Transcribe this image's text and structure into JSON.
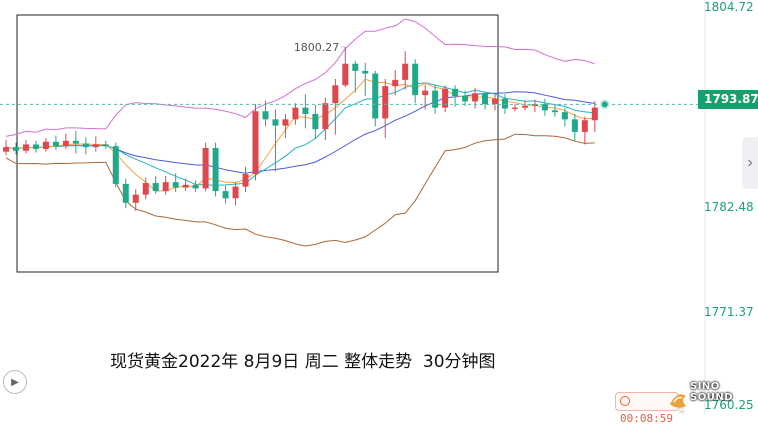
{
  "caption": "现货黄金2022年 8月9日 周二 整体走势  30分钟图",
  "axis": {
    "labels": [
      "1804.72",
      "1793.87",
      "1782.48",
      "1771.37",
      "1760.25"
    ],
    "current_price": "1793.87"
  },
  "high_annotation": "1800.27",
  "timer": "00:08:59",
  "logo": "SINO SOUND",
  "colors": {
    "up": "#e0474c",
    "down": "#1fa98a",
    "upper_band": "#d56fd8",
    "lower_band": "#a9683a",
    "ma_short": "#f4a340",
    "ma_mid": "#24b0c4",
    "ma_long": "#4b5bd6",
    "price_line": "#5cb6ad"
  },
  "chart_data": {
    "type": "candlestick",
    "title": "现货黄金2022年 8月9日 周二 整体走势  30分钟图",
    "ylim": [
      1760.25,
      1804.72
    ],
    "y_ticks": [
      1804.72,
      1793.87,
      1782.48,
      1771.37,
      1760.25
    ],
    "current_price": 1793.87,
    "annotations": [
      {
        "text": "1800.27",
        "value": 1800.27
      }
    ],
    "candles": [
      [
        1788.6,
        1789.1,
        1789.9,
        1788.2
      ],
      [
        1789.1,
        1788.7,
        1789.6,
        1788.3
      ],
      [
        1788.7,
        1789.4,
        1789.9,
        1788.4
      ],
      [
        1789.4,
        1788.9,
        1789.8,
        1788.5
      ],
      [
        1788.9,
        1789.7,
        1790.1,
        1788.6
      ],
      [
        1789.7,
        1789.2,
        1790.4,
        1788.8
      ],
      [
        1789.2,
        1789.8,
        1790.6,
        1788.9
      ],
      [
        1789.8,
        1789.5,
        1790.9,
        1788.4
      ],
      [
        1789.5,
        1789.1,
        1790.2,
        1788.3
      ],
      [
        1789.1,
        1789.4,
        1790.3,
        1788.6
      ],
      [
        1789.4,
        1789.2,
        1789.8,
        1788.9
      ],
      [
        1789.2,
        1785.0,
        1789.6,
        1784.6
      ],
      [
        1785.0,
        1782.9,
        1785.6,
        1782.3
      ],
      [
        1782.9,
        1783.8,
        1784.4,
        1782.0
      ],
      [
        1783.8,
        1785.1,
        1785.7,
        1783.3
      ],
      [
        1785.1,
        1784.2,
        1785.9,
        1783.9
      ],
      [
        1784.2,
        1785.2,
        1785.9,
        1783.8
      ],
      [
        1785.2,
        1784.6,
        1786.2,
        1784.1
      ],
      [
        1784.6,
        1784.9,
        1785.6,
        1784.2
      ],
      [
        1784.9,
        1784.5,
        1785.4,
        1784.1
      ],
      [
        1784.5,
        1789.0,
        1789.6,
        1784.2
      ],
      [
        1789.0,
        1784.2,
        1789.6,
        1783.6
      ],
      [
        1784.2,
        1783.4,
        1784.8,
        1782.8
      ],
      [
        1783.4,
        1784.7,
        1785.2,
        1782.6
      ],
      [
        1784.7,
        1786.1,
        1786.9,
        1784.1
      ],
      [
        1786.1,
        1793.1,
        1793.9,
        1785.4
      ],
      [
        1793.1,
        1792.2,
        1794.3,
        1791.4
      ],
      [
        1792.2,
        1791.5,
        1793.3,
        1786.4
      ],
      [
        1791.5,
        1792.2,
        1792.8,
        1790.1
      ],
      [
        1792.2,
        1793.5,
        1794.0,
        1791.6
      ],
      [
        1793.5,
        1792.8,
        1795.0,
        1791.2
      ],
      [
        1792.8,
        1791.1,
        1793.8,
        1790.0
      ],
      [
        1791.1,
        1794.0,
        1794.6,
        1789.9
      ],
      [
        1794.0,
        1796.0,
        1796.7,
        1790.5
      ],
      [
        1796.0,
        1798.4,
        1800.27,
        1795.8
      ],
      [
        1798.4,
        1797.6,
        1798.7,
        1795.2
      ],
      [
        1797.6,
        1797.3,
        1798.5,
        1794.8
      ],
      [
        1797.3,
        1792.3,
        1797.6,
        1791.4
      ],
      [
        1792.3,
        1795.9,
        1796.7,
        1790.1
      ],
      [
        1795.9,
        1796.6,
        1797.7,
        1794.9
      ],
      [
        1796.6,
        1798.4,
        1799.8,
        1795.5
      ],
      [
        1798.4,
        1794.9,
        1798.9,
        1794.0
      ],
      [
        1794.9,
        1795.4,
        1796.1,
        1793.3
      ],
      [
        1795.4,
        1793.5,
        1796.0,
        1792.8
      ],
      [
        1793.5,
        1795.6,
        1796.0,
        1793.0
      ],
      [
        1795.6,
        1794.8,
        1796.0,
        1793.6
      ],
      [
        1794.8,
        1794.2,
        1795.4,
        1793.7
      ],
      [
        1794.2,
        1795.1,
        1795.7,
        1793.4
      ],
      [
        1795.1,
        1793.9,
        1795.3,
        1793.3
      ],
      [
        1793.9,
        1794.5,
        1795.1,
        1793.2
      ],
      [
        1794.5,
        1793.4,
        1795.0,
        1792.8
      ],
      [
        1793.4,
        1793.5,
        1793.9,
        1793.1
      ],
      [
        1793.5,
        1793.7,
        1794.3,
        1793.2
      ],
      [
        1793.7,
        1793.9,
        1794.4,
        1793.0
      ],
      [
        1793.9,
        1793.2,
        1794.5,
        1792.6
      ],
      [
        1793.2,
        1793.0,
        1793.9,
        1792.5
      ],
      [
        1793.0,
        1792.2,
        1793.5,
        1791.4
      ],
      [
        1792.2,
        1790.8,
        1792.8,
        1789.8
      ],
      [
        1790.8,
        1792.1,
        1792.5,
        1789.4
      ],
      [
        1792.1,
        1793.5,
        1794.2,
        1790.8
      ]
    ]
  }
}
